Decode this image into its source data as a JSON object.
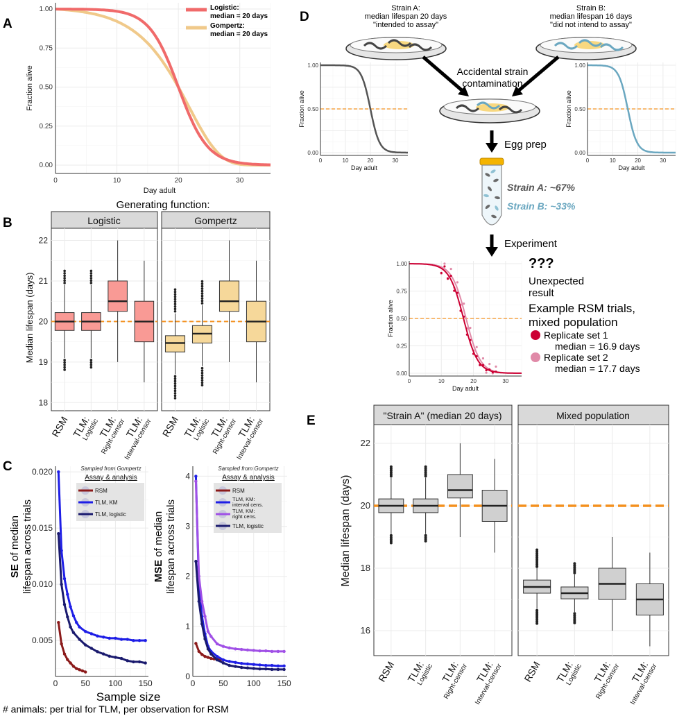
{
  "panel_labels": [
    "A",
    "B",
    "C",
    "D",
    "E"
  ],
  "colors": {
    "logistic": "#f06a6a",
    "gompertz": "#f0c98a",
    "box_red": "#f99a95",
    "box_gold": "#f6d89a",
    "median_line": "#f4901e",
    "rsm": "#8b1a1a",
    "tlm_km": "#1e1ee6",
    "tlm_km_right": "#a050e6",
    "tlm_logistic": "#1a1a6e",
    "strain_a": "#555555",
    "strain_b": "#6aa7c0",
    "rep1": "#cc0033",
    "rep2": "#e08aa8",
    "box_grey": "#d0d0d0"
  },
  "chart_data": [
    {
      "id": "A",
      "type": "line",
      "xlabel": "Day adult",
      "ylabel": "Fraction alive",
      "xlim": [
        0,
        35
      ],
      "ylim": [
        0,
        1
      ],
      "xticks": [
        "0",
        "10",
        "20",
        "30"
      ],
      "yticks": [
        "0.00",
        "0.25",
        "0.50",
        "0.75",
        "1.00"
      ],
      "series": [
        {
          "name": "Logistic:",
          "sub": "median = 20 days",
          "median": 20,
          "shape": "logistic"
        },
        {
          "name": "Gompertz:",
          "sub": "median = 20 days",
          "median": 20,
          "shape": "gompertz"
        }
      ]
    },
    {
      "id": "B",
      "type": "box",
      "title": "Generating function:",
      "ylabel": "Median lifespan (days)",
      "ylim": [
        17.8,
        22.3
      ],
      "yticks": [
        "18",
        "19",
        "20",
        "21",
        "22"
      ],
      "reference": 20,
      "facets": [
        "Logistic",
        "Gompertz"
      ],
      "categories": [
        {
          "main": "RSM",
          "sub": ""
        },
        {
          "main": "TLM:",
          "sub": "Logistic"
        },
        {
          "main": "TLM:",
          "sub": "Right-censor"
        },
        {
          "main": "TLM:",
          "sub": "Interval-censor"
        }
      ],
      "boxes": [
        [
          {
            "q1": 19.78,
            "med": 20.0,
            "q3": 20.22,
            "lo": 19.1,
            "hi": 20.9,
            "out_lo": 18.8,
            "out_hi": 21.3
          },
          {
            "q1": 19.78,
            "med": 20.0,
            "q3": 20.22,
            "lo": 19.1,
            "hi": 20.9,
            "out_lo": 18.85,
            "out_hi": 21.3
          },
          {
            "q1": 20.25,
            "med": 20.5,
            "q3": 21.0,
            "lo": 19.0,
            "hi": 22.0,
            "out_lo": null,
            "out_hi": null
          },
          {
            "q1": 19.5,
            "med": 20.0,
            "q3": 20.5,
            "lo": 18.5,
            "hi": 21.5,
            "out_lo": null,
            "out_hi": null
          }
        ],
        [
          {
            "q1": 19.25,
            "med": 19.47,
            "q3": 19.65,
            "lo": 18.7,
            "hi": 20.2,
            "out_lo": 18.1,
            "out_hi": 20.8
          },
          {
            "q1": 19.47,
            "med": 19.7,
            "q3": 19.9,
            "lo": 18.9,
            "hi": 20.4,
            "out_lo": 18.4,
            "out_hi": 21.0
          },
          {
            "q1": 20.25,
            "med": 20.5,
            "q3": 21.0,
            "lo": 19.0,
            "hi": 22.0,
            "out_lo": null,
            "out_hi": null
          },
          {
            "q1": 19.5,
            "med": 20.0,
            "q3": 20.5,
            "lo": 18.5,
            "hi": 21.5,
            "out_lo": null,
            "out_hi": null
          }
        ]
      ]
    },
    {
      "id": "C1",
      "type": "scatter",
      "xlabel": "Sample size",
      "ylabel": "SE of median lifespan across trials",
      "ylabel_bold": "SE",
      "ylabel_rest1": " of median",
      "ylabel_rest2": "lifespan across trials",
      "xlim": [
        0,
        155
      ],
      "ylim": [
        0.0018,
        0.0205
      ],
      "xticks": [
        "0",
        "50",
        "100",
        "150"
      ],
      "yticks": [
        "0.005",
        "0.010",
        "0.015",
        "0.020"
      ],
      "legend_note": "Sampled from Gompertz",
      "legend_title": "Assay & analysis",
      "legend": [
        "RSM",
        "TLM, KM",
        "TLM, logistic"
      ],
      "series": [
        {
          "name": "RSM",
          "x": [
            5,
            10,
            15,
            20,
            25,
            30,
            35,
            40,
            45,
            50
          ],
          "y": [
            0.0066,
            0.0047,
            0.0038,
            0.0033,
            0.003,
            0.0027,
            0.0025,
            0.0024,
            0.0023,
            0.0022
          ]
        },
        {
          "name": "TLM, KM",
          "x": [
            5,
            10,
            15,
            20,
            25,
            30,
            35,
            40,
            50,
            60,
            70,
            80,
            90,
            100,
            110,
            120,
            130,
            140,
            150
          ],
          "y": [
            0.02,
            0.013,
            0.0105,
            0.0091,
            0.008,
            0.0072,
            0.0066,
            0.0062,
            0.0058,
            0.0056,
            0.0054,
            0.0053,
            0.0052,
            0.0052,
            0.0051,
            0.0051,
            0.005,
            0.005,
            0.005
          ]
        },
        {
          "name": "TLM, logistic",
          "x": [
            5,
            10,
            15,
            20,
            25,
            30,
            40,
            50,
            60,
            70,
            80,
            90,
            100,
            110,
            120,
            130,
            140,
            150
          ],
          "y": [
            0.0145,
            0.01,
            0.0082,
            0.0071,
            0.0062,
            0.0057,
            0.0051,
            0.0046,
            0.0043,
            0.004,
            0.0038,
            0.0036,
            0.0035,
            0.0034,
            0.0032,
            0.0031,
            0.0031,
            0.003
          ]
        }
      ]
    },
    {
      "id": "C2",
      "type": "scatter",
      "xlabel": "",
      "ylabel": "MSE of median lifespan across trials",
      "ylabel_bold": "MSE",
      "ylabel_rest1": " of median",
      "ylabel_rest2": "lifespan across trials",
      "xlim": [
        0,
        155
      ],
      "ylim": [
        0,
        4.2
      ],
      "xticks": [
        "0",
        "50",
        "100",
        "150"
      ],
      "yticks": [
        "0",
        "1",
        "2",
        "3",
        "4"
      ],
      "legend_note": "Sampled from Gompertz",
      "legend_title": "Assay & analysis",
      "legend": [
        "RSM",
        "TLM, KM: interval cens.",
        "TLM, KM: right cens.",
        "TLM, logistic"
      ],
      "series": [
        {
          "name": "RSM",
          "x": [
            5,
            10,
            15,
            20,
            25,
            30,
            35,
            40,
            45,
            50
          ],
          "y": [
            0.66,
            0.5,
            0.44,
            0.4,
            0.38,
            0.36,
            0.35,
            0.34,
            0.34,
            0.33
          ]
        },
        {
          "name": "TLM, KM: interval cens.",
          "x": [
            5,
            10,
            15,
            20,
            25,
            30,
            40,
            50,
            60,
            70,
            80,
            90,
            100,
            110,
            120,
            130,
            140,
            150
          ],
          "y": [
            4.0,
            1.8,
            1.2,
            0.85,
            0.6,
            0.5,
            0.4,
            0.33,
            0.3,
            0.28,
            0.26,
            0.25,
            0.24,
            0.23,
            0.22,
            0.22,
            0.21,
            0.21
          ]
        },
        {
          "name": "TLM, KM: right cens.",
          "x": [
            5,
            10,
            15,
            20,
            25,
            30,
            40,
            50,
            60,
            70,
            80,
            90,
            100,
            110,
            120,
            130,
            140,
            150
          ],
          "y": [
            3.9,
            2.0,
            1.5,
            1.2,
            0.9,
            0.8,
            0.65,
            0.6,
            0.57,
            0.55,
            0.54,
            0.53,
            0.52,
            0.51,
            0.51,
            0.5,
            0.5,
            0.5
          ]
        },
        {
          "name": "TLM, logistic",
          "x": [
            5,
            10,
            15,
            20,
            25,
            30,
            40,
            50,
            60,
            70,
            80,
            90,
            100,
            110,
            120,
            130,
            140,
            150
          ],
          "y": [
            2.3,
            1.5,
            1.05,
            0.75,
            0.55,
            0.45,
            0.33,
            0.27,
            0.22,
            0.2,
            0.18,
            0.17,
            0.16,
            0.15,
            0.15,
            0.14,
            0.14,
            0.14
          ]
        }
      ]
    },
    {
      "id": "D_strainA",
      "type": "line",
      "xlabel": "Day adult",
      "ylabel": "Fraction alive",
      "xlim": [
        0,
        35
      ],
      "ylim": [
        0,
        1
      ],
      "median": 20,
      "xticks": [
        "0",
        "10",
        "20",
        "30"
      ],
      "yticks": [
        "0.00",
        "0.50",
        "1.00"
      ]
    },
    {
      "id": "D_strainB",
      "type": "line",
      "xlabel": "Day adult",
      "ylabel": "Fraction alive",
      "xlim": [
        0,
        35
      ],
      "ylim": [
        0,
        1
      ],
      "median": 16,
      "xticks": [
        "0",
        "10",
        "20",
        "30"
      ],
      "yticks": [
        "0.00",
        "0.50",
        "1.00"
      ]
    },
    {
      "id": "D_experiment",
      "type": "line",
      "xlabel": "Day adult",
      "ylabel": "Fraction alive",
      "xlim": [
        0,
        35
      ],
      "ylim": [
        0,
        1
      ],
      "xticks": [
        "0",
        "10",
        "20",
        "30"
      ],
      "yticks": [
        "0.00",
        "0.25",
        "0.50",
        "0.75",
        "1.00"
      ],
      "series": [
        {
          "name": "Replicate set 1",
          "median": 16.9
        },
        {
          "name": "Replicate set 2",
          "median": 17.7
        }
      ]
    },
    {
      "id": "E",
      "type": "box",
      "ylabel": "Median lifespan (days)",
      "ylim": [
        15.2,
        22.6
      ],
      "yticks": [
        "16",
        "18",
        "20",
        "22"
      ],
      "reference": 20,
      "facets": [
        "\"Strain A\" (median 20 days)",
        "Mixed population"
      ],
      "categories": [
        {
          "main": "RSM",
          "sub": ""
        },
        {
          "main": "TLM:",
          "sub": "Logistic"
        },
        {
          "main": "TLM:",
          "sub": "Right-censor"
        },
        {
          "main": "TLM:",
          "sub": "Interval-censor"
        }
      ],
      "boxes": [
        [
          {
            "q1": 19.78,
            "med": 20.0,
            "q3": 20.22,
            "lo": 19.1,
            "hi": 20.9,
            "out_lo": 18.8,
            "out_hi": 21.3
          },
          {
            "q1": 19.78,
            "med": 20.0,
            "q3": 20.22,
            "lo": 19.1,
            "hi": 20.9,
            "out_lo": 18.85,
            "out_hi": 21.3
          },
          {
            "q1": 20.25,
            "med": 20.5,
            "q3": 21.0,
            "lo": 19.0,
            "hi": 22.0,
            "out_lo": null,
            "out_hi": null
          },
          {
            "q1": 19.5,
            "med": 20.0,
            "q3": 20.5,
            "lo": 18.5,
            "hi": 21.5,
            "out_lo": null,
            "out_hi": null
          }
        ],
        [
          {
            "q1": 17.2,
            "med": 17.4,
            "q3": 17.62,
            "lo": 16.7,
            "hi": 18.0,
            "out_lo": 16.2,
            "out_hi": 18.6
          },
          {
            "q1": 17.02,
            "med": 17.2,
            "q3": 17.4,
            "lo": 16.6,
            "hi": 17.8,
            "out_lo": 16.2,
            "out_hi": 18.2
          },
          {
            "q1": 17.0,
            "med": 17.5,
            "q3": 18.0,
            "lo": 16.0,
            "hi": 19.0,
            "out_lo": null,
            "out_hi": null
          },
          {
            "q1": 16.5,
            "med": 17.0,
            "q3": 17.5,
            "lo": 15.5,
            "hi": 18.5,
            "out_lo": null,
            "out_hi": null
          }
        ]
      ]
    }
  ],
  "diagram": {
    "strain_a": [
      "Strain A:",
      "median lifespan 20 days",
      "\"intended to assay\""
    ],
    "strain_b": [
      "Strain B:",
      "median lifespan 16 days",
      "\"did not intend to assay\""
    ],
    "contamination": [
      "Accidental strain",
      "contamination"
    ],
    "egg_prep": "Egg prep",
    "strain_a_pct": "Strain A: ~67%",
    "strain_b_pct": "Strain B: ~33%",
    "experiment": "Experiment",
    "question": "???",
    "unexpected": [
      "Unexpected",
      "result"
    ],
    "example_title": [
      "Example RSM trials,",
      "mixed population"
    ],
    "rep1": [
      "Replicate set 1",
      "median = 16.9 days"
    ],
    "rep2": [
      "Replicate set 2",
      "median = 17.7 days"
    ]
  },
  "footer": "# animals: per trial for TLM, per observation for RSM"
}
